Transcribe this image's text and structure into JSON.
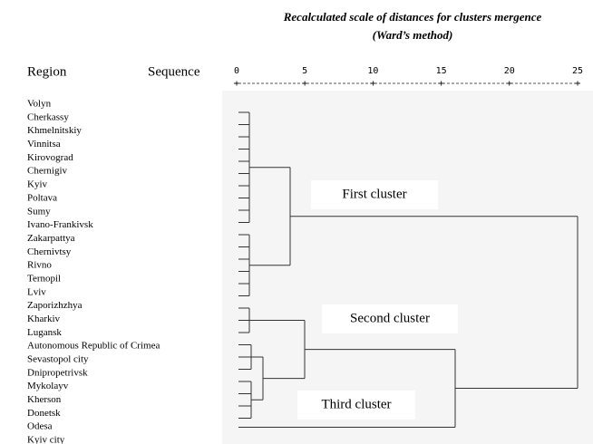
{
  "title": [
    "Recalculated scale of distances for clusters mergence",
    "(Ward’s method)"
  ],
  "headers": {
    "region": "Region",
    "sequence": "Sequence"
  },
  "scale": [
    0,
    5,
    10,
    15,
    20,
    25
  ],
  "regions": [
    "Volyn",
    "Cherkassy",
    "Khmelnitskiy",
    "Vinnitsa",
    "Kirovograd",
    "Chernigiv",
    "Kyiv",
    "Poltava",
    "Sumy",
    "Ivano-Frankivsk",
    "Zakarpattya",
    "Chernivtsy",
    "Rivno",
    "Ternopil",
    "Lviv",
    "Zaporizhzhya",
    "Kharkiv",
    "Lugansk",
    "Autonomous Republic of Crimea",
    "Sevastopol city",
    "Dnipropetrivsk",
    "Mykolayv",
    "Kherson",
    "Donetsk",
    "Odesa",
    "Kyiv city"
  ],
  "clusters": [
    "First cluster",
    "Second cluster",
    "Third cluster"
  ]
}
